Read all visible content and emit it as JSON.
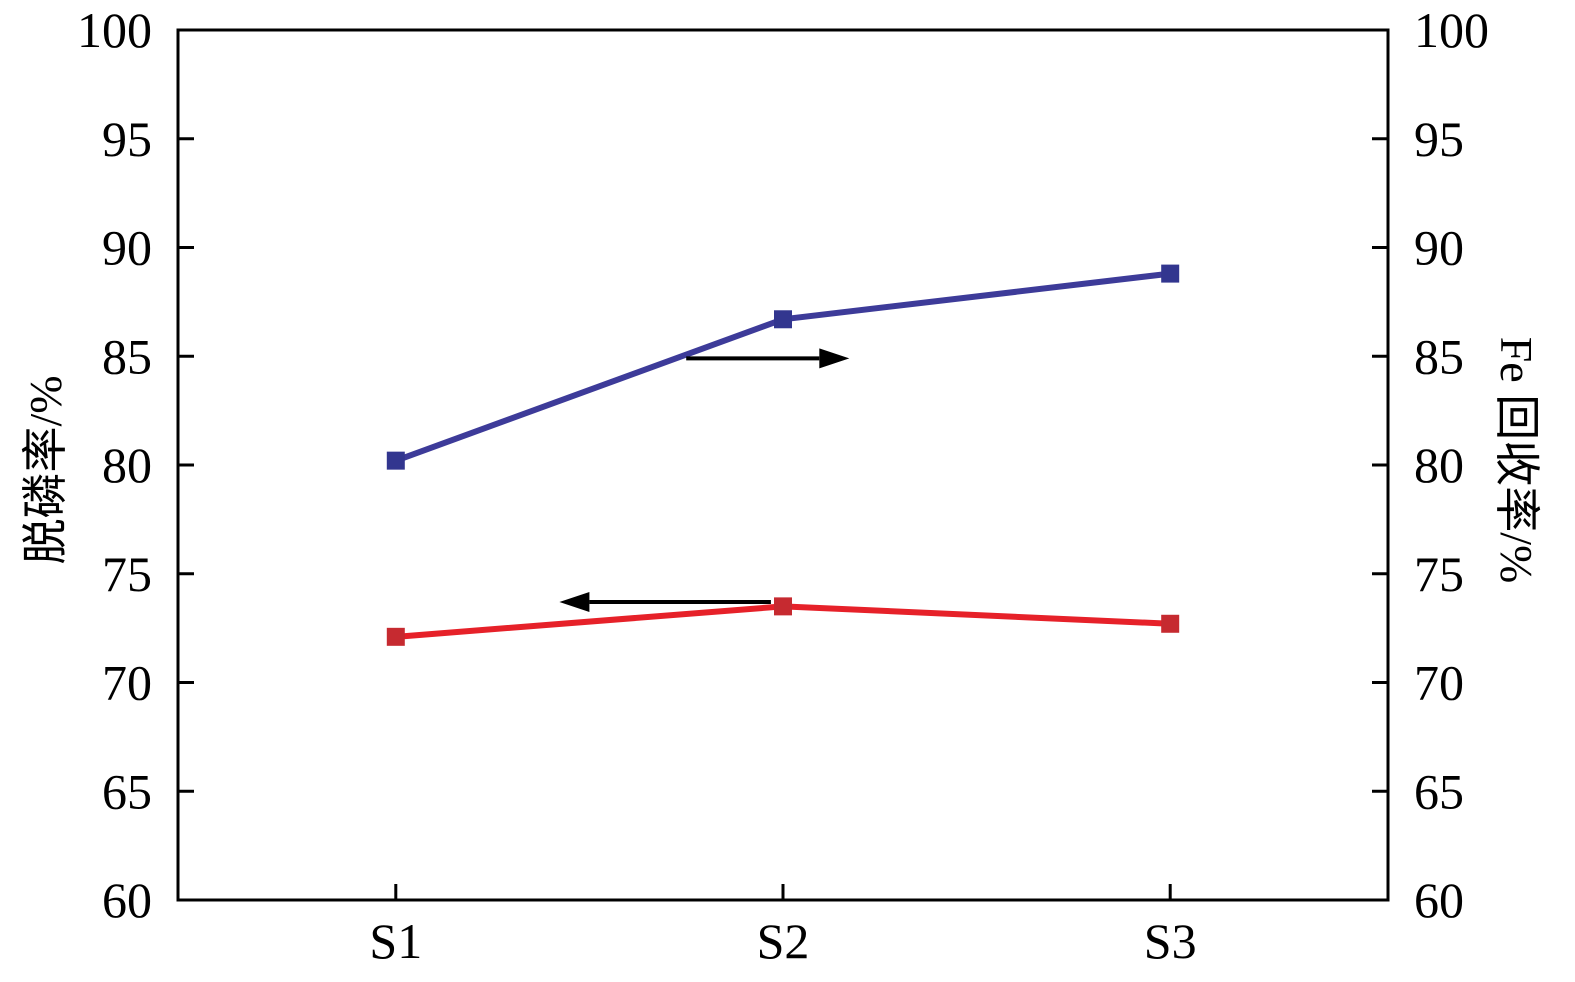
{
  "chart_data": {
    "type": "line",
    "categories": [
      "S1",
      "S2",
      "S3"
    ],
    "series": [
      {
        "key": "dephosphorization-rate",
        "name": "脱磷率/%",
        "axis": "left",
        "color": "#e62129",
        "marker_color": "#c62a30",
        "values": [
          72.1,
          73.5,
          72.7
        ]
      },
      {
        "key": "fe-recovery-rate",
        "name": "Fe 回收率/%",
        "axis": "right",
        "color": "#3d3b99",
        "marker_color": "#32368f",
        "values": [
          80.2,
          86.7,
          88.8
        ]
      }
    ],
    "ylabel_left": "脱磷率/%",
    "ylabel_right": "Fe 回收率/%",
    "ylim": [
      60,
      100
    ],
    "ytick_step": 5,
    "grid": false,
    "frame_color": "#000000",
    "annotation_color": "#000000",
    "annotations": [
      {
        "type": "arrow",
        "direction": "right",
        "y": 84.9,
        "x_from": 0.42,
        "x_to": 0.53
      },
      {
        "type": "arrow",
        "direction": "left",
        "y": 73.7,
        "x_from": 0.49,
        "x_to": 0.34
      }
    ]
  }
}
